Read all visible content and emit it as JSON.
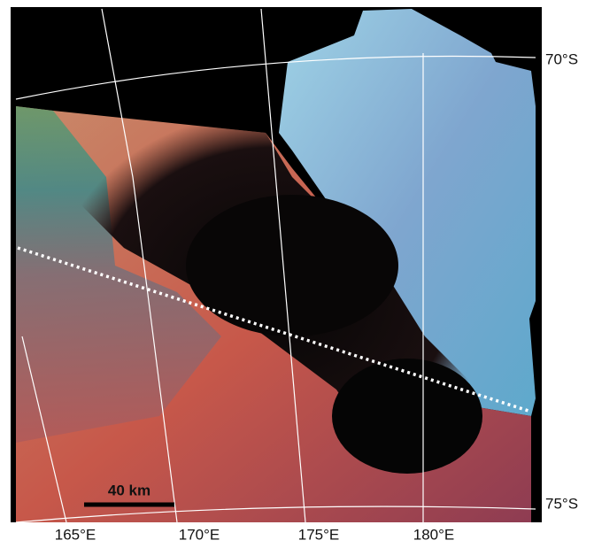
{
  "map": {
    "latitude_labels": [
      "70°S",
      "75°S"
    ],
    "longitude_labels": [
      "165°E",
      "170°E",
      "175°E",
      "180°E"
    ],
    "scale_bar": "40 km"
  }
}
